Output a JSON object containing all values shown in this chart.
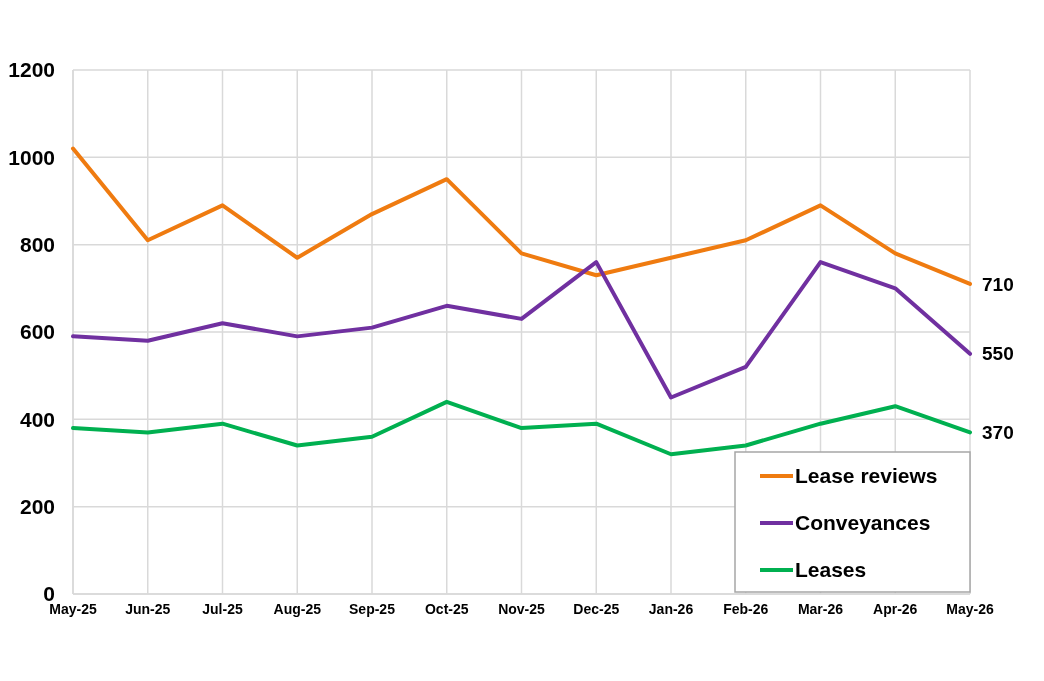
{
  "chart_data": {
    "type": "line",
    "categories": [
      "May-25",
      "Jun-25",
      "Jul-25",
      "Aug-25",
      "Sep-25",
      "Oct-25",
      "Nov-25",
      "Dec-25",
      "Jan-26",
      "Feb-26",
      "Mar-26",
      "Apr-26",
      "May-26"
    ],
    "series": [
      {
        "name": "Lease reviews",
        "color": "#ef7b10",
        "values": [
          1020,
          810,
          890,
          770,
          870,
          950,
          780,
          730,
          770,
          810,
          890,
          780,
          710
        ]
      },
      {
        "name": "Conveyances",
        "color": "#7030a0",
        "values": [
          590,
          580,
          620,
          590,
          610,
          660,
          630,
          760,
          450,
          520,
          760,
          700,
          550
        ]
      },
      {
        "name": "Leases",
        "color": "#00b050",
        "values": [
          380,
          370,
          390,
          340,
          360,
          440,
          380,
          390,
          320,
          340,
          390,
          430,
          370
        ]
      }
    ],
    "ylim": [
      0,
      1200
    ],
    "yticks": [
      0,
      200,
      400,
      600,
      800,
      1000,
      1200
    ],
    "grid": true,
    "legend": "bottom right",
    "marker": "none",
    "line_style": "solid",
    "annotations": [
      {
        "text": "710",
        "x": "May-26",
        "y": 710
      },
      {
        "text": "550",
        "x": "May-26",
        "y": 550
      },
      {
        "text": "370",
        "x": "May-26",
        "y": 370
      }
    ]
  }
}
